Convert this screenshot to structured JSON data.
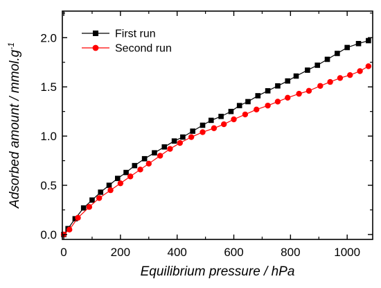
{
  "chart_data": {
    "type": "line",
    "xlabel": "Equilibrium pressure / hPa",
    "ylabel_main": "Adsorbed amount / mmol.g",
    "ylabel_sup": "-1",
    "xlim": [
      -5,
      1090
    ],
    "ylim": [
      -0.05,
      2.27
    ],
    "xticks": [
      0,
      200,
      400,
      600,
      800,
      1000
    ],
    "xtick_labels": [
      "0",
      "200",
      "400",
      "600",
      "800",
      "1000"
    ],
    "yticks": [
      0.0,
      0.5,
      1.0,
      1.5,
      2.0
    ],
    "ytick_labels": [
      "0.0",
      "0.5",
      "1.0",
      "1.5",
      "2.0"
    ],
    "grid": false,
    "legend_position": "top-left",
    "series": [
      {
        "name": "First run",
        "color": "#000000",
        "marker": "square",
        "x": [
          0,
          15,
          40,
          70,
          100,
          130,
          160,
          190,
          220,
          250,
          285,
          320,
          355,
          390,
          420,
          455,
          490,
          520,
          555,
          590,
          620,
          650,
          685,
          720,
          755,
          790,
          820,
          860,
          895,
          930,
          965,
          1000,
          1040,
          1075
        ],
        "y": [
          0.0,
          0.06,
          0.16,
          0.27,
          0.35,
          0.43,
          0.5,
          0.57,
          0.63,
          0.7,
          0.77,
          0.83,
          0.89,
          0.95,
          0.99,
          1.05,
          1.11,
          1.16,
          1.2,
          1.25,
          1.31,
          1.35,
          1.41,
          1.46,
          1.51,
          1.56,
          1.61,
          1.67,
          1.72,
          1.78,
          1.84,
          1.9,
          1.94,
          1.97
        ]
      },
      {
        "name": "Second run",
        "color": "#ff0000",
        "marker": "circle",
        "x": [
          0,
          20,
          50,
          90,
          125,
          165,
          200,
          235,
          270,
          300,
          340,
          375,
          410,
          450,
          490,
          530,
          565,
          600,
          640,
          680,
          720,
          755,
          790,
          830,
          865,
          905,
          940,
          975,
          1010,
          1045,
          1075
        ],
        "y": [
          0.0,
          0.05,
          0.17,
          0.28,
          0.37,
          0.45,
          0.52,
          0.59,
          0.66,
          0.72,
          0.8,
          0.87,
          0.93,
          0.99,
          1.04,
          1.08,
          1.12,
          1.17,
          1.22,
          1.27,
          1.31,
          1.35,
          1.39,
          1.43,
          1.46,
          1.51,
          1.55,
          1.59,
          1.62,
          1.66,
          1.71
        ]
      }
    ]
  }
}
